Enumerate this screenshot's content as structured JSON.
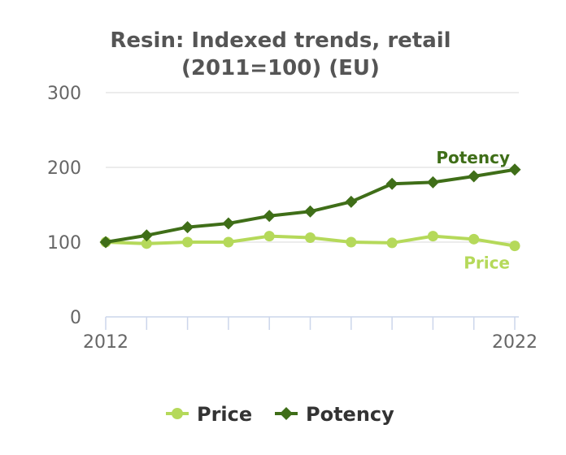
{
  "chart_data": {
    "type": "line",
    "title_lines": [
      "Resin: Indexed trends, retail",
      "(2011=100) (EU)"
    ],
    "x": [
      2012,
      2013,
      2014,
      2015,
      2016,
      2017,
      2018,
      2019,
      2020,
      2021,
      2022
    ],
    "x_tick_labels": [
      "2012",
      "2022"
    ],
    "y_tick_labels": [
      "0",
      "100",
      "200",
      "300"
    ],
    "xlim": [
      2012,
      2022
    ],
    "ylim": [
      0,
      300
    ],
    "y_ticks": [
      0,
      100,
      200,
      300
    ],
    "grid": "horizontal",
    "legend_position": "bottom",
    "series": [
      {
        "name": "Price",
        "color": "#b5d95a",
        "marker": "circle",
        "values": [
          100,
          98,
          100,
          100,
          108,
          106,
          100,
          99,
          108,
          104,
          95
        ]
      },
      {
        "name": "Potency",
        "color": "#3f6e18",
        "marker": "diamond",
        "values": [
          100,
          109,
          120,
          125,
          135,
          141,
          154,
          178,
          180,
          188,
          197
        ]
      }
    ]
  }
}
